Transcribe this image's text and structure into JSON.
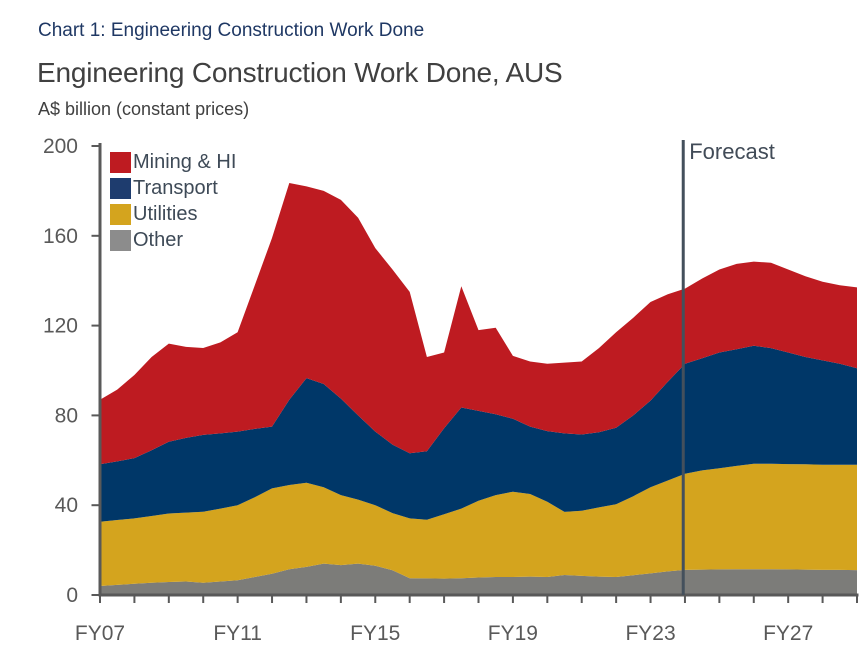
{
  "page": {
    "header": "Chart 1: Engineering Construction Work Done",
    "title": "Engineering Construction Work Done, AUS",
    "subtitle": "A$ billion (constant prices)"
  },
  "colors": {
    "header_text": "#1F3864",
    "title_text": "#404040",
    "axis": "#595959",
    "tick_label": "#595959",
    "forecast_line": "#44505C",
    "forecast_text": "#414B57",
    "legend_text": "#3E4A57"
  },
  "chart_data": {
    "type": "area",
    "stacked": true,
    "title": "Engineering Construction Work Done, AUS",
    "ylabel": "A$ billion (constant prices)",
    "ylim": [
      0,
      200
    ],
    "y_ticks": [
      0,
      40,
      80,
      120,
      160,
      200
    ],
    "x_range": [
      2007,
      2029
    ],
    "x_tick_step": 1,
    "x_tick_labels": [
      {
        "year": 2007,
        "label": "FY07"
      },
      {
        "year": 2011,
        "label": "FY11"
      },
      {
        "year": 2015,
        "label": "FY15"
      },
      {
        "year": 2019,
        "label": "FY19"
      },
      {
        "year": 2023,
        "label": "FY23"
      },
      {
        "year": 2027,
        "label": "FY27"
      }
    ],
    "forecast": {
      "label": "Forecast",
      "year": 2023.95
    },
    "x": [
      2007,
      2007.5,
      2008,
      2008.5,
      2009,
      2009.5,
      2010,
      2010.5,
      2011,
      2011.5,
      2012,
      2012.5,
      2013,
      2013.5,
      2014,
      2014.5,
      2015,
      2015.5,
      2016,
      2016.5,
      2017,
      2017.5,
      2018,
      2018.5,
      2019,
      2019.5,
      2020,
      2020.5,
      2021,
      2021.5,
      2022,
      2022.5,
      2023,
      2023.5,
      2024,
      2024.5,
      2025,
      2025.5,
      2026,
      2026.5,
      2027,
      2027.5,
      2028,
      2028.5,
      2029
    ],
    "series": [
      {
        "name": "Other",
        "color": "#7C7C79",
        "values": [
          4.0,
          4.5,
          5.0,
          5.5,
          5.8,
          6.0,
          5.5,
          6.0,
          6.6,
          8.0,
          9.5,
          11.5,
          12.5,
          14.0,
          13.3,
          14.0,
          13.0,
          11.0,
          7.5,
          7.4,
          7.3,
          7.5,
          7.8,
          8.0,
          8.0,
          8.2,
          8.0,
          8.9,
          8.5,
          8.2,
          8.0,
          8.8,
          9.6,
          10.5,
          11.2,
          11.3,
          11.4,
          11.5,
          11.5,
          11.5,
          11.4,
          11.3,
          11.2,
          11.2,
          11.1
        ]
      },
      {
        "name": "Utilities",
        "color": "#D4A41E",
        "values": [
          28.6,
          28.9,
          29.1,
          29.7,
          30.5,
          30.7,
          31.6,
          32.5,
          33.4,
          35.5,
          38.0,
          37.5,
          37.5,
          34.0,
          31.2,
          28.5,
          27.0,
          25.5,
          26.6,
          26.1,
          28.7,
          31.0,
          34.2,
          36.5,
          38.0,
          36.8,
          33.5,
          28.1,
          29.0,
          30.8,
          32.4,
          35.2,
          38.4,
          40.5,
          42.8,
          44.2,
          45.1,
          46.0,
          47.0,
          47.0,
          46.9,
          46.9,
          46.8,
          46.8,
          46.9
        ]
      },
      {
        "name": "Transport",
        "color": "#003768",
        "values": [
          25.6,
          26.1,
          26.9,
          29.3,
          32.0,
          33.3,
          34.2,
          33.5,
          32.8,
          30.5,
          27.5,
          38.0,
          46.6,
          46.0,
          43.0,
          37.5,
          32.8,
          30.5,
          29.0,
          30.5,
          38.3,
          45.0,
          40.0,
          36.0,
          32.5,
          30.0,
          31.5,
          35.0,
          34.0,
          33.5,
          34.1,
          36.0,
          38.6,
          44.0,
          49.0,
          50.0,
          51.5,
          52.0,
          52.5,
          51.5,
          49.7,
          47.8,
          46.5,
          45.0,
          43.0
        ]
      },
      {
        "name": "Mining & HI",
        "color": "#BE1B21",
        "values": [
          28.8,
          32.0,
          37.0,
          41.5,
          43.7,
          40.5,
          38.7,
          40.5,
          44.2,
          64.0,
          84.0,
          96.5,
          85.4,
          86.0,
          88.5,
          88.0,
          81.7,
          78.0,
          71.9,
          42.0,
          33.7,
          54.0,
          36.0,
          38.5,
          28.0,
          29.0,
          30.0,
          31.5,
          32.5,
          37.5,
          42.5,
          43.5,
          43.9,
          39.0,
          33.5,
          35.5,
          37.0,
          38.0,
          37.5,
          38.0,
          37.0,
          36.0,
          35.0,
          35.0,
          36.0
        ]
      }
    ],
    "legend": [
      {
        "label": "Mining & HI",
        "color": "#BE1B21"
      },
      {
        "label": "Transport",
        "color": "#1E3C6E"
      },
      {
        "label": "Utilities",
        "color": "#D4A41E"
      },
      {
        "label": "Other",
        "color": "#8C8C8C"
      }
    ]
  }
}
